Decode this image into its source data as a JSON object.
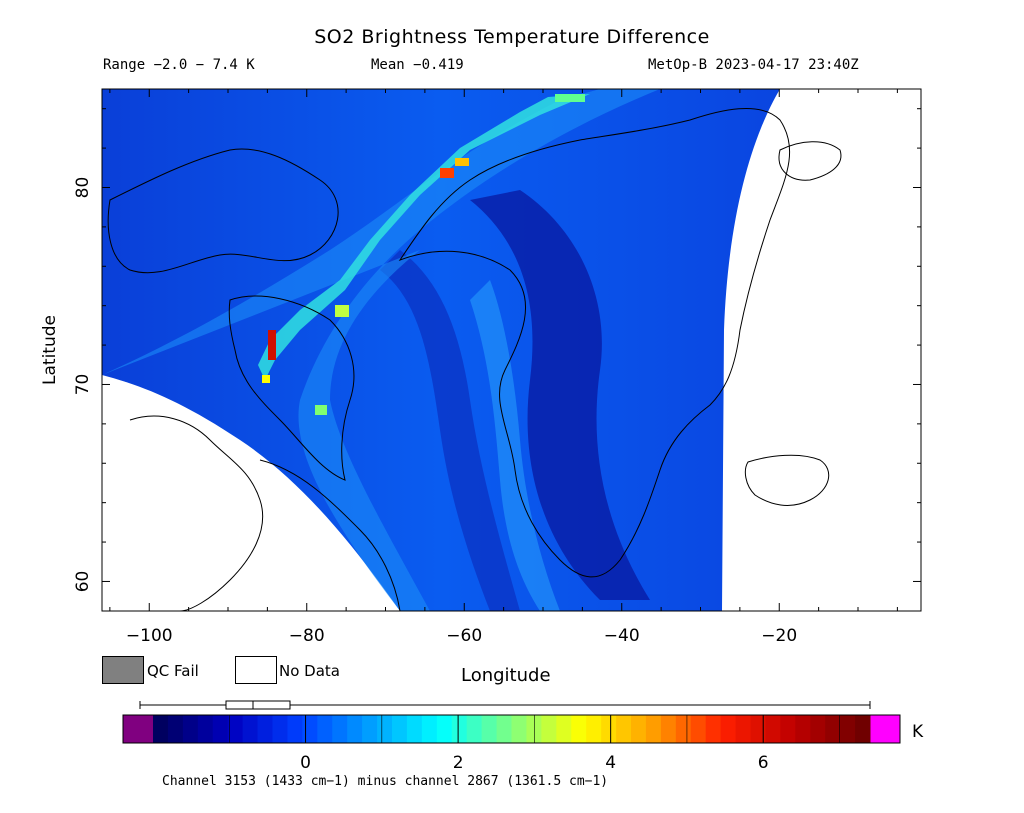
{
  "title": "SO2 Brightness Temperature Difference",
  "header": {
    "range": "Range −2.0 − 7.4 K",
    "mean": "Mean −0.419",
    "satellite_time": "MetOp-B 2023-04-17 23:40Z"
  },
  "axes": {
    "x_label": "Longitude",
    "y_label": "Latitude",
    "x_ticks": [
      "−100",
      "−80",
      "−60",
      "−40",
      "−20"
    ],
    "x_tick_values": [
      -100,
      -80,
      -60,
      -40,
      -20
    ],
    "y_ticks": [
      "60",
      "70",
      "80"
    ],
    "y_tick_values": [
      60,
      70,
      80
    ],
    "lon_range": [
      -106,
      -2
    ],
    "lat_range": [
      58.5,
      85
    ]
  },
  "legend": {
    "qc_fail": "QC Fail",
    "no_data": "No Data",
    "qc_fail_color": "#808080",
    "no_data_color": "#ffffff"
  },
  "colorbar": {
    "unit": "K",
    "ticks": [
      "0",
      "2",
      "4",
      "6"
    ],
    "tick_values": [
      0,
      2,
      4,
      6
    ],
    "range": [
      -2.0,
      7.4
    ],
    "colors": [
      "#000060",
      "#0000c0",
      "#0040ff",
      "#00a0ff",
      "#00ffff",
      "#80ff80",
      "#ffff00",
      "#ffa000",
      "#ff2000",
      "#c00000",
      "#700000"
    ],
    "under_color": "#800080",
    "over_color": "#ff00ff"
  },
  "footnote": "Channel 3153 (1433 cm−1) minus channel 2867 (1361.5 cm−1)"
}
